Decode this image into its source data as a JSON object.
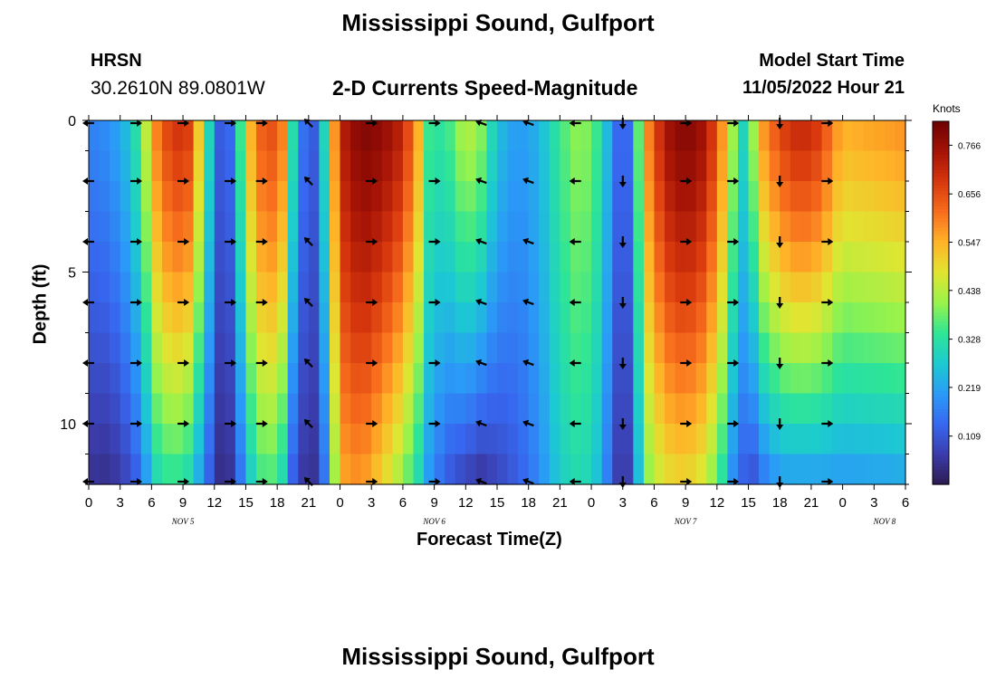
{
  "header": {
    "title": "Mississippi Sound, Gulfport",
    "station": "HRSN",
    "coords": "30.2610N  89.0801W",
    "subtitle": "2-D Currents Speed-Magnitude",
    "start_label": "Model Start Time",
    "start_time": "11/05/2022 Hour 21"
  },
  "footer": {
    "title": "Mississippi Sound, Gulfport"
  },
  "chart_data": {
    "type": "heatmap",
    "xlabel": "Forecast Time(Z)",
    "ylabel": "Depth (ft)",
    "x_ticks": [
      "0",
      "3",
      "6",
      "9",
      "12",
      "15",
      "18",
      "21",
      "0",
      "3",
      "6",
      "9",
      "12",
      "15",
      "18",
      "21",
      "0",
      "3",
      "6",
      "9",
      "12",
      "15",
      "18",
      "21",
      "0",
      "3",
      "6"
    ],
    "date_labels": [
      {
        "label": "NOV 5",
        "hour": 9
      },
      {
        "label": "NOV 6",
        "hour": 33
      },
      {
        "label": "NOV 7",
        "hour": 57
      },
      {
        "label": "NOV 8",
        "hour": 76
      }
    ],
    "x_range": [
      0,
      78
    ],
    "y_ticks": [
      0,
      5,
      10
    ],
    "ylim": [
      0,
      12
    ],
    "y_inverted": true,
    "colorbar": {
      "unit": "Knots",
      "ticks": [
        "0.766",
        "0.656",
        "0.547",
        "0.438",
        "0.328",
        "0.219",
        "0.109"
      ],
      "range": [
        0,
        0.82
      ],
      "colors": [
        "#2c1a4f",
        "#3b3cab",
        "#3767f0",
        "#2a9bf7",
        "#1ccad1",
        "#2ee596",
        "#96f34c",
        "#e0e531",
        "#ffb428",
        "#f86f1d",
        "#d8380d",
        "#a51306",
        "#6e0103"
      ]
    },
    "speed_profile": [
      {
        "hour": 0,
        "surface": 0.17,
        "bottom": 0.05
      },
      {
        "hour": 2,
        "surface": 0.19,
        "bottom": 0.04
      },
      {
        "hour": 3.5,
        "surface": 0.25,
        "bottom": 0.08
      },
      {
        "hour": 4.5,
        "surface": 0.32,
        "bottom": 0.12
      },
      {
        "hour": 5.5,
        "surface": 0.45,
        "bottom": 0.2
      },
      {
        "hour": 6.5,
        "surface": 0.6,
        "bottom": 0.3
      },
      {
        "hour": 8,
        "surface": 0.7,
        "bottom": 0.34
      },
      {
        "hour": 9.5,
        "surface": 0.68,
        "bottom": 0.3
      },
      {
        "hour": 10.5,
        "surface": 0.52,
        "bottom": 0.22
      },
      {
        "hour": 11.5,
        "surface": 0.3,
        "bottom": 0.12
      },
      {
        "hour": 12.5,
        "surface": 0.12,
        "bottom": 0.04
      },
      {
        "hour": 13.5,
        "surface": 0.14,
        "bottom": 0.05
      },
      {
        "hour": 14.5,
        "surface": 0.35,
        "bottom": 0.15
      },
      {
        "hour": 15.5,
        "surface": 0.55,
        "bottom": 0.28
      },
      {
        "hour": 17,
        "surface": 0.68,
        "bottom": 0.38
      },
      {
        "hour": 18.5,
        "surface": 0.6,
        "bottom": 0.3
      },
      {
        "hour": 19.5,
        "surface": 0.32,
        "bottom": 0.12
      },
      {
        "hour": 20.5,
        "surface": 0.15,
        "bottom": 0.06
      },
      {
        "hour": 21.5,
        "surface": 0.12,
        "bottom": 0.05
      },
      {
        "hour": 22.5,
        "surface": 0.3,
        "bottom": 0.15
      },
      {
        "hour": 24,
        "surface": 0.72,
        "bottom": 0.55
      },
      {
        "hour": 26,
        "surface": 0.8,
        "bottom": 0.58
      },
      {
        "hour": 28,
        "surface": 0.78,
        "bottom": 0.5
      },
      {
        "hour": 30,
        "surface": 0.72,
        "bottom": 0.4
      },
      {
        "hour": 31.5,
        "surface": 0.55,
        "bottom": 0.3
      },
      {
        "hour": 32.5,
        "surface": 0.35,
        "bottom": 0.2
      },
      {
        "hour": 34,
        "surface": 0.33,
        "bottom": 0.12
      },
      {
        "hour": 36,
        "surface": 0.45,
        "bottom": 0.07
      },
      {
        "hour": 37.5,
        "surface": 0.4,
        "bottom": 0.05
      },
      {
        "hour": 39,
        "surface": 0.26,
        "bottom": 0.08
      },
      {
        "hour": 41,
        "surface": 0.2,
        "bottom": 0.12
      },
      {
        "hour": 43,
        "surface": 0.24,
        "bottom": 0.18
      },
      {
        "hour": 45,
        "surface": 0.35,
        "bottom": 0.28
      },
      {
        "hour": 47,
        "surface": 0.42,
        "bottom": 0.32
      },
      {
        "hour": 48.5,
        "surface": 0.35,
        "bottom": 0.26
      },
      {
        "hour": 50,
        "surface": 0.2,
        "bottom": 0.12
      },
      {
        "hour": 51,
        "surface": 0.08,
        "bottom": 0.02
      },
      {
        "hour": 52,
        "surface": 0.2,
        "bottom": 0.12
      },
      {
        "hour": 53,
        "surface": 0.55,
        "bottom": 0.38
      },
      {
        "hour": 55,
        "surface": 0.75,
        "bottom": 0.48
      },
      {
        "hour": 57,
        "surface": 0.8,
        "bottom": 0.5
      },
      {
        "hour": 59,
        "surface": 0.75,
        "bottom": 0.45
      },
      {
        "hour": 60.5,
        "surface": 0.58,
        "bottom": 0.32
      },
      {
        "hour": 61.5,
        "surface": 0.42,
        "bottom": 0.18
      },
      {
        "hour": 62.5,
        "surface": 0.3,
        "bottom": 0.12
      },
      {
        "hour": 63.5,
        "surface": 0.42,
        "bottom": 0.1
      },
      {
        "hour": 64.5,
        "surface": 0.58,
        "bottom": 0.15
      },
      {
        "hour": 66,
        "surface": 0.67,
        "bottom": 0.2
      },
      {
        "hour": 68,
        "surface": 0.72,
        "bottom": 0.2
      },
      {
        "hour": 70,
        "surface": 0.68,
        "bottom": 0.2
      },
      {
        "hour": 71,
        "surface": 0.6,
        "bottom": 0.2
      },
      {
        "hour": 72,
        "surface": 0.55,
        "bottom": 0.2
      }
    ],
    "arrow_hours": [
      0,
      4.5,
      9,
      13.5,
      16.5,
      21,
      27,
      33,
      37.5,
      42,
      46.5,
      51,
      57,
      61.5,
      66,
      70.5
    ],
    "arrow_depths": [
      0,
      2,
      4,
      6,
      8,
      10,
      12
    ],
    "arrow_direction_by_hour": [
      180,
      0,
      0,
      0,
      0,
      225,
      0,
      0,
      200,
      200,
      180,
      90,
      0,
      0,
      90,
      0
    ]
  }
}
